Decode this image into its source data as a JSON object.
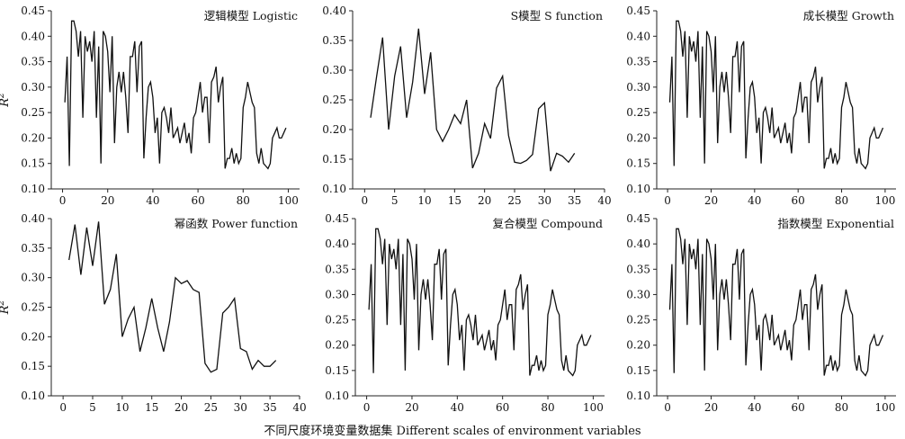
{
  "figure": {
    "x_axis_label": "不同尺度环境变量数据集 Different scales of environment variables",
    "y_axis_label_base": "R",
    "y_axis_label_sup": "2"
  },
  "chart_data": [
    {
      "type": "line",
      "title": "逻辑模型 Logistic",
      "xlabel": "",
      "ylabel": "R2",
      "xlim": [
        -5,
        105
      ],
      "ylim": [
        0.1,
        0.45
      ],
      "xticks": [
        0,
        20,
        40,
        60,
        80,
        100
      ],
      "yticks": [
        0.1,
        0.15,
        0.2,
        0.25,
        0.3,
        0.35,
        0.4,
        0.45
      ],
      "ytick_labels": [
        "0.10",
        "0.15",
        "0.20",
        "0.25",
        "0.30",
        "0.35",
        "0.40",
        "0.45"
      ],
      "x": [
        1,
        2,
        3,
        4,
        5,
        6,
        7,
        8,
        9,
        10,
        11,
        12,
        13,
        14,
        15,
        16,
        17,
        18,
        19,
        20,
        21,
        22,
        23,
        24,
        25,
        26,
        27,
        28,
        29,
        30,
        31,
        32,
        33,
        34,
        35,
        36,
        37,
        38,
        39,
        40,
        41,
        42,
        43,
        44,
        45,
        46,
        47,
        48,
        49,
        50,
        51,
        52,
        53,
        54,
        55,
        56,
        57,
        58,
        59,
        60,
        61,
        62,
        63,
        64,
        65,
        66,
        67,
        68,
        69,
        70,
        71,
        72,
        73,
        74,
        75,
        76,
        77,
        78,
        79,
        80,
        81,
        82,
        83,
        84,
        85,
        86,
        87,
        88,
        89,
        90,
        91,
        92,
        93,
        94,
        95,
        96,
        97,
        98,
        99
      ],
      "series": [
        {
          "values": [
            0.27,
            0.36,
            0.145,
            0.43,
            0.43,
            0.41,
            0.36,
            0.41,
            0.24,
            0.4,
            0.37,
            0.39,
            0.35,
            0.41,
            0.24,
            0.38,
            0.15,
            0.41,
            0.4,
            0.37,
            0.29,
            0.4,
            0.19,
            0.3,
            0.33,
            0.29,
            0.33,
            0.28,
            0.21,
            0.36,
            0.36,
            0.39,
            0.29,
            0.38,
            0.39,
            0.16,
            0.24,
            0.3,
            0.31,
            0.28,
            0.21,
            0.24,
            0.15,
            0.25,
            0.26,
            0.24,
            0.21,
            0.26,
            0.2,
            0.21,
            0.22,
            0.19,
            0.21,
            0.23,
            0.19,
            0.21,
            0.17,
            0.24,
            0.25,
            0.28,
            0.31,
            0.25,
            0.28,
            0.28,
            0.19,
            0.31,
            0.32,
            0.34,
            0.27,
            0.3,
            0.32,
            0.14,
            0.16,
            0.16,
            0.18,
            0.15,
            0.17,
            0.15,
            0.16,
            0.26,
            0.28,
            0.31,
            0.29,
            0.27,
            0.26,
            0.17,
            0.15,
            0.18,
            0.15,
            0.145,
            0.14,
            0.15,
            0.2,
            0.21,
            0.22,
            0.2,
            0.2,
            0.21,
            0.22
          ]
        }
      ]
    },
    {
      "type": "line",
      "title": "S模型 S function",
      "xlabel": "",
      "ylabel": "",
      "xlim": [
        -2,
        40
      ],
      "ylim": [
        0.1,
        0.4
      ],
      "xticks": [
        0,
        5,
        10,
        15,
        20,
        25,
        30,
        35,
        40
      ],
      "yticks": [
        0.1,
        0.15,
        0.2,
        0.25,
        0.3,
        0.35,
        0.4
      ],
      "ytick_labels": [
        "0.10",
        "0.15",
        "0.20",
        "0.25",
        "0.30",
        "0.35",
        "0.40"
      ],
      "x": [
        1,
        2,
        3,
        4,
        5,
        6,
        7,
        8,
        9,
        10,
        11,
        12,
        13,
        14,
        15,
        16,
        17,
        18,
        19,
        20,
        21,
        22,
        23,
        24,
        25,
        26,
        27,
        28,
        29,
        30,
        31,
        32,
        33,
        34,
        35
      ],
      "series": [
        {
          "values": [
            0.22,
            0.29,
            0.355,
            0.2,
            0.29,
            0.34,
            0.22,
            0.28,
            0.37,
            0.26,
            0.33,
            0.2,
            0.18,
            0.2,
            0.225,
            0.21,
            0.25,
            0.135,
            0.16,
            0.21,
            0.185,
            0.27,
            0.29,
            0.19,
            0.145,
            0.143,
            0.148,
            0.158,
            0.235,
            0.245,
            0.13,
            0.16,
            0.155,
            0.145,
            0.16
          ]
        }
      ]
    },
    {
      "type": "line",
      "title": "成长模型 Growth",
      "xlabel": "",
      "ylabel": "",
      "xlim": [
        -5,
        105
      ],
      "ylim": [
        0.1,
        0.45
      ],
      "xticks": [
        0,
        20,
        40,
        60,
        80,
        100
      ],
      "yticks": [
        0.1,
        0.15,
        0.2,
        0.25,
        0.3,
        0.35,
        0.4,
        0.45
      ],
      "ytick_labels": [
        "0.10",
        "0.15",
        "0.20",
        "0.25",
        "0.30",
        "0.35",
        "0.40",
        "0.45"
      ],
      "x": [
        1,
        2,
        3,
        4,
        5,
        6,
        7,
        8,
        9,
        10,
        11,
        12,
        13,
        14,
        15,
        16,
        17,
        18,
        19,
        20,
        21,
        22,
        23,
        24,
        25,
        26,
        27,
        28,
        29,
        30,
        31,
        32,
        33,
        34,
        35,
        36,
        37,
        38,
        39,
        40,
        41,
        42,
        43,
        44,
        45,
        46,
        47,
        48,
        49,
        50,
        51,
        52,
        53,
        54,
        55,
        56,
        57,
        58,
        59,
        60,
        61,
        62,
        63,
        64,
        65,
        66,
        67,
        68,
        69,
        70,
        71,
        72,
        73,
        74,
        75,
        76,
        77,
        78,
        79,
        80,
        81,
        82,
        83,
        84,
        85,
        86,
        87,
        88,
        89,
        90,
        91,
        92,
        93,
        94,
        95,
        96,
        97,
        98,
        99
      ],
      "series": [
        {
          "values": [
            0.27,
            0.36,
            0.145,
            0.43,
            0.43,
            0.41,
            0.36,
            0.41,
            0.24,
            0.4,
            0.37,
            0.39,
            0.35,
            0.41,
            0.24,
            0.38,
            0.15,
            0.41,
            0.4,
            0.37,
            0.29,
            0.4,
            0.19,
            0.3,
            0.33,
            0.29,
            0.33,
            0.28,
            0.21,
            0.36,
            0.36,
            0.39,
            0.29,
            0.38,
            0.39,
            0.16,
            0.24,
            0.3,
            0.31,
            0.28,
            0.21,
            0.24,
            0.15,
            0.25,
            0.26,
            0.24,
            0.21,
            0.26,
            0.2,
            0.21,
            0.22,
            0.19,
            0.21,
            0.23,
            0.19,
            0.21,
            0.17,
            0.24,
            0.25,
            0.28,
            0.31,
            0.25,
            0.28,
            0.28,
            0.19,
            0.31,
            0.32,
            0.34,
            0.27,
            0.3,
            0.32,
            0.14,
            0.16,
            0.16,
            0.18,
            0.15,
            0.17,
            0.15,
            0.16,
            0.26,
            0.28,
            0.31,
            0.29,
            0.27,
            0.26,
            0.17,
            0.15,
            0.18,
            0.15,
            0.145,
            0.14,
            0.15,
            0.2,
            0.21,
            0.22,
            0.2,
            0.2,
            0.21,
            0.22
          ]
        }
      ]
    },
    {
      "type": "line",
      "title": "幂函数 Power function",
      "xlabel": "",
      "ylabel": "R2",
      "xlim": [
        -2,
        40
      ],
      "ylim": [
        0.1,
        0.4
      ],
      "xticks": [
        0,
        5,
        10,
        15,
        20,
        25,
        30,
        35,
        40
      ],
      "yticks": [
        0.1,
        0.15,
        0.2,
        0.25,
        0.3,
        0.35,
        0.4
      ],
      "ytick_labels": [
        "0.10",
        "0.15",
        "0.20",
        "0.25",
        "0.30",
        "0.35",
        "0.40"
      ],
      "x": [
        1,
        2,
        3,
        4,
        5,
        6,
        7,
        8,
        9,
        10,
        11,
        12,
        13,
        14,
        15,
        16,
        17,
        18,
        19,
        20,
        21,
        22,
        23,
        24,
        25,
        26,
        27,
        28,
        29,
        30,
        31,
        32,
        33,
        34,
        35,
        36
      ],
      "series": [
        {
          "values": [
            0.33,
            0.39,
            0.305,
            0.385,
            0.32,
            0.395,
            0.255,
            0.28,
            0.34,
            0.2,
            0.23,
            0.25,
            0.175,
            0.215,
            0.265,
            0.215,
            0.175,
            0.225,
            0.3,
            0.29,
            0.295,
            0.28,
            0.275,
            0.155,
            0.14,
            0.145,
            0.24,
            0.25,
            0.265,
            0.18,
            0.175,
            0.145,
            0.16,
            0.15,
            0.15,
            0.16
          ]
        }
      ]
    },
    {
      "type": "line",
      "title": "复合模型 Compound",
      "xlabel": "",
      "ylabel": "",
      "xlim": [
        -5,
        105
      ],
      "ylim": [
        0.1,
        0.45
      ],
      "xticks": [
        0,
        20,
        40,
        60,
        80,
        100
      ],
      "yticks": [
        0.1,
        0.15,
        0.2,
        0.25,
        0.3,
        0.35,
        0.4,
        0.45
      ],
      "ytick_labels": [
        "0.10",
        "0.15",
        "0.20",
        "0.25",
        "0.30",
        "0.35",
        "0.40",
        "0.45"
      ],
      "x": [
        1,
        2,
        3,
        4,
        5,
        6,
        7,
        8,
        9,
        10,
        11,
        12,
        13,
        14,
        15,
        16,
        17,
        18,
        19,
        20,
        21,
        22,
        23,
        24,
        25,
        26,
        27,
        28,
        29,
        30,
        31,
        32,
        33,
        34,
        35,
        36,
        37,
        38,
        39,
        40,
        41,
        42,
        43,
        44,
        45,
        46,
        47,
        48,
        49,
        50,
        51,
        52,
        53,
        54,
        55,
        56,
        57,
        58,
        59,
        60,
        61,
        62,
        63,
        64,
        65,
        66,
        67,
        68,
        69,
        70,
        71,
        72,
        73,
        74,
        75,
        76,
        77,
        78,
        79,
        80,
        81,
        82,
        83,
        84,
        85,
        86,
        87,
        88,
        89,
        90,
        91,
        92,
        93,
        94,
        95,
        96,
        97,
        98,
        99
      ],
      "series": [
        {
          "values": [
            0.27,
            0.36,
            0.145,
            0.43,
            0.43,
            0.41,
            0.36,
            0.41,
            0.24,
            0.4,
            0.37,
            0.39,
            0.35,
            0.41,
            0.24,
            0.38,
            0.15,
            0.41,
            0.4,
            0.37,
            0.29,
            0.4,
            0.19,
            0.3,
            0.33,
            0.29,
            0.33,
            0.28,
            0.21,
            0.36,
            0.36,
            0.39,
            0.29,
            0.38,
            0.39,
            0.16,
            0.24,
            0.3,
            0.31,
            0.28,
            0.21,
            0.24,
            0.15,
            0.25,
            0.26,
            0.24,
            0.21,
            0.26,
            0.2,
            0.21,
            0.22,
            0.19,
            0.21,
            0.23,
            0.19,
            0.21,
            0.17,
            0.24,
            0.25,
            0.28,
            0.31,
            0.25,
            0.28,
            0.28,
            0.19,
            0.31,
            0.32,
            0.34,
            0.27,
            0.3,
            0.32,
            0.14,
            0.16,
            0.16,
            0.18,
            0.15,
            0.17,
            0.15,
            0.16,
            0.26,
            0.28,
            0.31,
            0.29,
            0.27,
            0.26,
            0.17,
            0.15,
            0.18,
            0.15,
            0.145,
            0.14,
            0.15,
            0.2,
            0.21,
            0.22,
            0.2,
            0.2,
            0.21,
            0.22
          ]
        }
      ]
    },
    {
      "type": "line",
      "title": "指数模型 Exponential",
      "xlabel": "",
      "ylabel": "",
      "xlim": [
        -5,
        105
      ],
      "ylim": [
        0.1,
        0.45
      ],
      "xticks": [
        0,
        20,
        40,
        60,
        80,
        100
      ],
      "yticks": [
        0.1,
        0.15,
        0.2,
        0.25,
        0.3,
        0.35,
        0.4,
        0.45
      ],
      "ytick_labels": [
        "0.10",
        "0.15",
        "0.20",
        "0.25",
        "0.30",
        "0.35",
        "0.40",
        "0.45"
      ],
      "x": [
        1,
        2,
        3,
        4,
        5,
        6,
        7,
        8,
        9,
        10,
        11,
        12,
        13,
        14,
        15,
        16,
        17,
        18,
        19,
        20,
        21,
        22,
        23,
        24,
        25,
        26,
        27,
        28,
        29,
        30,
        31,
        32,
        33,
        34,
        35,
        36,
        37,
        38,
        39,
        40,
        41,
        42,
        43,
        44,
        45,
        46,
        47,
        48,
        49,
        50,
        51,
        52,
        53,
        54,
        55,
        56,
        57,
        58,
        59,
        60,
        61,
        62,
        63,
        64,
        65,
        66,
        67,
        68,
        69,
        70,
        71,
        72,
        73,
        74,
        75,
        76,
        77,
        78,
        79,
        80,
        81,
        82,
        83,
        84,
        85,
        86,
        87,
        88,
        89,
        90,
        91,
        92,
        93,
        94,
        95,
        96,
        97,
        98,
        99
      ],
      "series": [
        {
          "values": [
            0.27,
            0.36,
            0.145,
            0.43,
            0.43,
            0.41,
            0.36,
            0.41,
            0.24,
            0.4,
            0.37,
            0.39,
            0.35,
            0.41,
            0.24,
            0.38,
            0.15,
            0.41,
            0.4,
            0.37,
            0.29,
            0.4,
            0.19,
            0.3,
            0.33,
            0.29,
            0.33,
            0.28,
            0.21,
            0.36,
            0.36,
            0.39,
            0.29,
            0.38,
            0.39,
            0.16,
            0.24,
            0.3,
            0.31,
            0.28,
            0.21,
            0.24,
            0.15,
            0.25,
            0.26,
            0.24,
            0.21,
            0.26,
            0.2,
            0.21,
            0.22,
            0.19,
            0.21,
            0.23,
            0.19,
            0.21,
            0.17,
            0.24,
            0.25,
            0.28,
            0.31,
            0.25,
            0.28,
            0.28,
            0.19,
            0.31,
            0.32,
            0.34,
            0.27,
            0.3,
            0.32,
            0.14,
            0.16,
            0.16,
            0.18,
            0.15,
            0.17,
            0.15,
            0.16,
            0.26,
            0.28,
            0.31,
            0.29,
            0.27,
            0.26,
            0.17,
            0.15,
            0.18,
            0.15,
            0.145,
            0.14,
            0.15,
            0.2,
            0.21,
            0.22,
            0.2,
            0.2,
            0.21,
            0.22
          ]
        }
      ]
    }
  ]
}
